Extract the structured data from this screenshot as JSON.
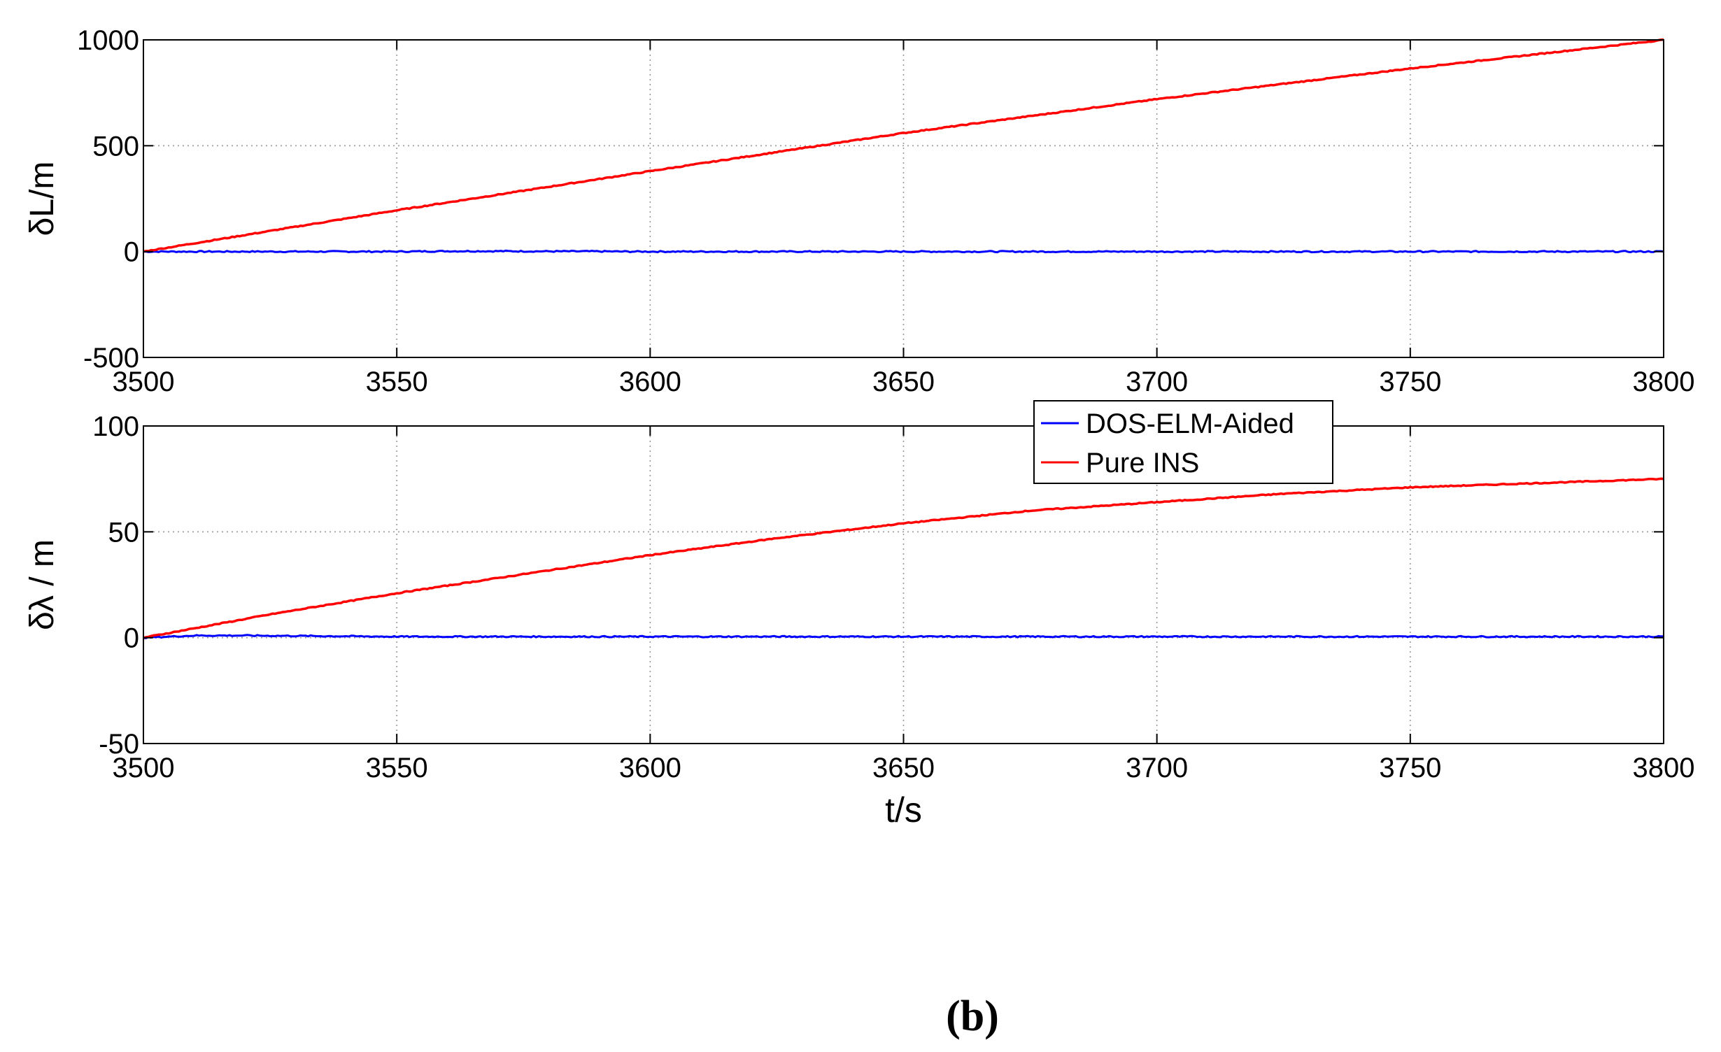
{
  "chart_data": [
    {
      "type": "line",
      "title": "",
      "xlabel": "",
      "ylabel": "δL/m",
      "xlim": [
        3500,
        3800
      ],
      "ylim": [
        -500,
        1000
      ],
      "xticks": [
        3500,
        3550,
        3600,
        3650,
        3700,
        3750,
        3800
      ],
      "yticks": [
        -500,
        0,
        500,
        1000
      ],
      "grid": true,
      "series": [
        {
          "name": "DOS-ELM-Aided",
          "color": "#0000ff",
          "x": [
            3500,
            3550,
            3560,
            3570,
            3580,
            3590,
            3596,
            3600,
            3650,
            3700,
            3750,
            3800
          ],
          "y": [
            0,
            0,
            2,
            2,
            1,
            1,
            0,
            0,
            0,
            0,
            0,
            0
          ]
        },
        {
          "name": "Pure INS",
          "color": "#ff0000",
          "x": [
            3500,
            3550,
            3600,
            3650,
            3700,
            3750,
            3800
          ],
          "y": [
            0,
            195,
            380,
            560,
            720,
            865,
            1000
          ]
        }
      ]
    },
    {
      "type": "line",
      "title": "",
      "xlabel": "t/s",
      "ylabel": "δλ / m",
      "xlim": [
        3500,
        3800
      ],
      "ylim": [
        -50,
        100
      ],
      "xticks": [
        3500,
        3550,
        3600,
        3650,
        3700,
        3750,
        3800
      ],
      "yticks": [
        -50,
        0,
        50,
        100
      ],
      "grid": true,
      "legend": {
        "position": "top-center",
        "entries": [
          "DOS-ELM-Aided",
          "Pure INS"
        ]
      },
      "series": [
        {
          "name": "DOS-ELM-Aided",
          "color": "#0000ff",
          "x": [
            3500,
            3510,
            3520,
            3550,
            3600,
            3650,
            3700,
            3750,
            3800
          ],
          "y": [
            0,
            1,
            1,
            0.5,
            0.5,
            0.5,
            0.5,
            0.5,
            0.5
          ]
        },
        {
          "name": "Pure INS",
          "color": "#ff0000",
          "x": [
            3500,
            3525,
            3550,
            3575,
            3600,
            3625,
            3650,
            3675,
            3700,
            3725,
            3750,
            3775,
            3800
          ],
          "y": [
            0,
            11,
            21,
            30,
            39,
            47,
            54,
            60,
            64,
            68,
            71,
            73,
            75
          ]
        }
      ]
    }
  ],
  "panel_label": "(b)"
}
